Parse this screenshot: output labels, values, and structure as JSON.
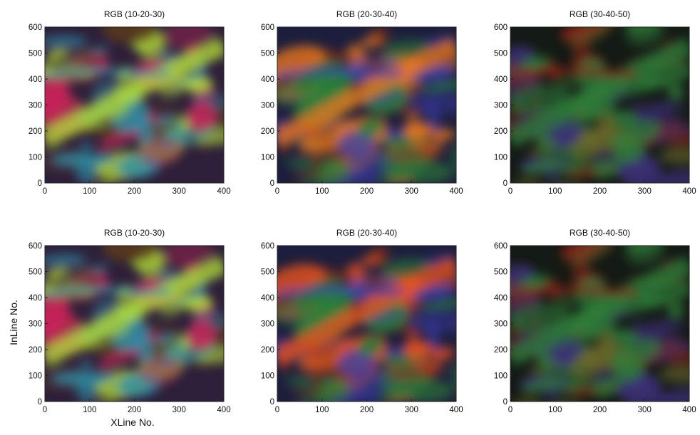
{
  "figure": {
    "xlabel": "XLine No.",
    "ylabel": "InLine No."
  },
  "panels": [
    {
      "title": "RGB (10-20-30)",
      "palette": [
        "#2e1f3a",
        "#b7e33a",
        "#2d8fa8",
        "#c7245a",
        "#5a3b1c"
      ]
    },
    {
      "title": "RGB (20-30-40)",
      "palette": [
        "#1d1e3d",
        "#f07a1e",
        "#3b3fae",
        "#2a7f3a",
        "#6e2a1c"
      ]
    },
    {
      "title": "RGB (30-40-50)",
      "palette": [
        "#141a15",
        "#2f7e3a",
        "#8b2318",
        "#3d2e7a",
        "#6d6a2a"
      ]
    },
    {
      "title": "RGB (10-20-30)",
      "palette": [
        "#2e1f3a",
        "#b7e33a",
        "#2d8fa8",
        "#c7245a",
        "#5a3b1c"
      ]
    },
    {
      "title": "RGB (20-30-40)",
      "palette": [
        "#1d1e3d",
        "#f0541e",
        "#3b3fae",
        "#2a7f3a",
        "#6e2a1c"
      ]
    },
    {
      "title": "RGB (30-40-50)",
      "palette": [
        "#141a15",
        "#2f7e3a",
        "#8b2318",
        "#3d2e7a",
        "#6d6a2a"
      ]
    }
  ],
  "axes": {
    "x_ticks": [
      "0",
      "100",
      "200",
      "300",
      "400"
    ],
    "y_ticks": [
      "0",
      "100",
      "200",
      "300",
      "400",
      "500",
      "600"
    ]
  }
}
